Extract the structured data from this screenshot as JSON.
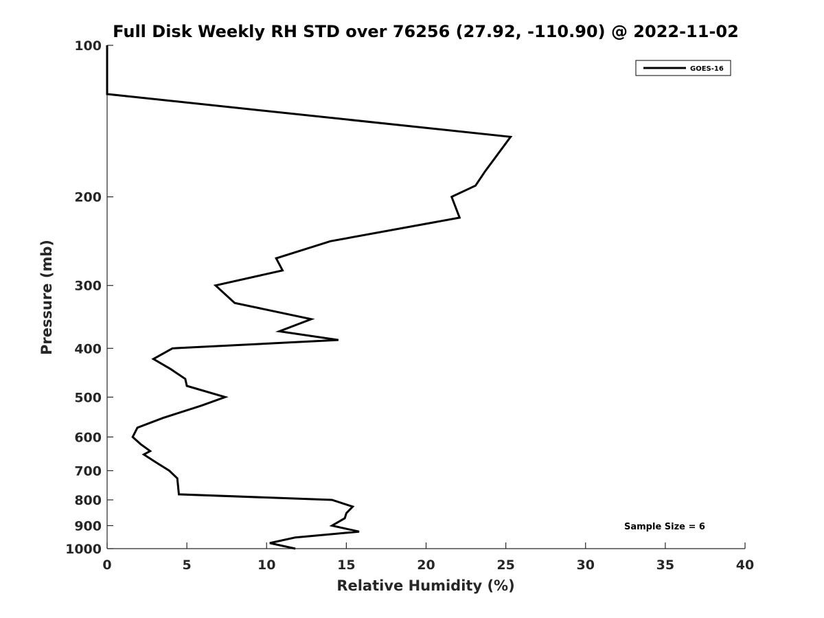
{
  "chart_data": {
    "type": "line",
    "title": "Full Disk Weekly RH STD over 76256 (27.92, -110.90) @ 2022-11-02",
    "xlabel": "Relative Humidity (%)",
    "ylabel": "Pressure (mb)",
    "xlim": [
      0,
      40
    ],
    "ylim": [
      100,
      1000
    ],
    "y_scale": "log",
    "y_reversed": true,
    "grid": false,
    "legend_position": "top-right",
    "x_ticks": [
      0,
      5,
      10,
      15,
      20,
      25,
      30,
      35,
      40
    ],
    "y_ticks": [
      100,
      200,
      300,
      400,
      500,
      600,
      700,
      800,
      900,
      1000
    ],
    "series": [
      {
        "name": "GOES-16",
        "color": "#000000",
        "points": [
          [
            0.0,
            100
          ],
          [
            0.0,
            125
          ],
          [
            25.3,
            152
          ],
          [
            23.7,
            178
          ],
          [
            23.1,
            190
          ],
          [
            21.6,
            200
          ],
          [
            22.1,
            220
          ],
          [
            14.0,
            245
          ],
          [
            10.6,
            265
          ],
          [
            11.0,
            280
          ],
          [
            6.8,
            300
          ],
          [
            8.0,
            325
          ],
          [
            12.8,
            350
          ],
          [
            10.8,
            370
          ],
          [
            14.5,
            385
          ],
          [
            4.1,
            400
          ],
          [
            2.9,
            420
          ],
          [
            4.0,
            440
          ],
          [
            4.9,
            460
          ],
          [
            5.0,
            475
          ],
          [
            7.4,
            500
          ],
          [
            5.9,
            520
          ],
          [
            3.5,
            550
          ],
          [
            1.9,
            575
          ],
          [
            1.6,
            600
          ],
          [
            2.1,
            620
          ],
          [
            2.7,
            640
          ],
          [
            2.3,
            650
          ],
          [
            3.1,
            675
          ],
          [
            3.9,
            700
          ],
          [
            4.4,
            725
          ],
          [
            4.5,
            780
          ],
          [
            14.1,
            800
          ],
          [
            15.4,
            825
          ],
          [
            15.0,
            850
          ],
          [
            14.9,
            870
          ],
          [
            14.1,
            900
          ],
          [
            15.8,
            925
          ],
          [
            11.8,
            950
          ],
          [
            10.2,
            975
          ],
          [
            11.8,
            1000
          ]
        ]
      }
    ],
    "annotations": [
      {
        "text": "Sample Size = 6"
      }
    ]
  }
}
